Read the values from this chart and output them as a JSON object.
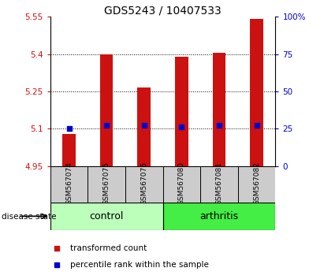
{
  "title": "GDS5243 / 10407533",
  "samples": [
    "GSM567074",
    "GSM567075",
    "GSM567076",
    "GSM567080",
    "GSM567081",
    "GSM567082"
  ],
  "red_bar_values": [
    5.08,
    5.4,
    5.265,
    5.39,
    5.405,
    5.54
  ],
  "blue_percentile_values": [
    25,
    27,
    27,
    26,
    27,
    27
  ],
  "ylim_left": [
    4.95,
    5.55
  ],
  "ylim_right": [
    0,
    100
  ],
  "yticks_left": [
    4.95,
    5.1,
    5.25,
    5.4,
    5.55
  ],
  "ytick_labels_left": [
    "4.95",
    "5.1",
    "5.25",
    "5.4",
    "5.55"
  ],
  "yticks_right": [
    0,
    25,
    50,
    75,
    100
  ],
  "ytick_labels_right": [
    "0",
    "25",
    "50",
    "75",
    "100%"
  ],
  "groups": [
    {
      "label": "control",
      "indices": [
        0,
        1,
        2
      ],
      "color": "#bbffbb"
    },
    {
      "label": "arthritis",
      "indices": [
        3,
        4,
        5
      ],
      "color": "#44ee44"
    }
  ],
  "disease_state_label": "disease state",
  "bar_color": "#cc1111",
  "marker_color": "#0000cc",
  "bar_width": 0.35,
  "grid_ticks": [
    5.1,
    5.25,
    5.4
  ],
  "legend_items": [
    {
      "color": "#cc1111",
      "label": "transformed count"
    },
    {
      "color": "#0000cc",
      "label": "percentile rank within the sample"
    }
  ]
}
